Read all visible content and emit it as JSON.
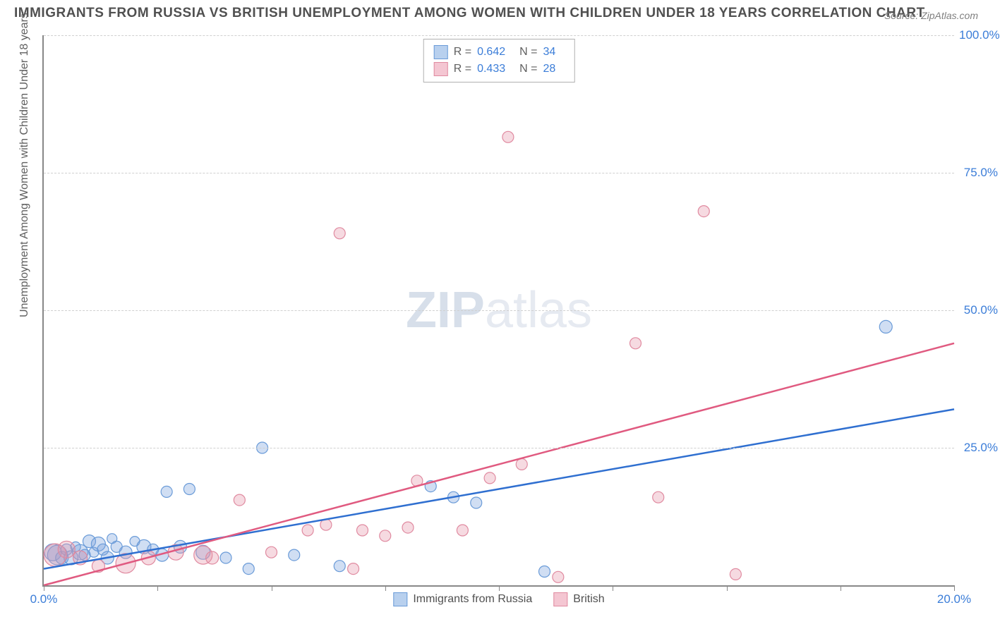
{
  "title": "IMMIGRANTS FROM RUSSIA VS BRITISH UNEMPLOYMENT AMONG WOMEN WITH CHILDREN UNDER 18 YEARS CORRELATION CHART",
  "source": "Source: ZipAtlas.com",
  "y_axis_label": "Unemployment Among Women with Children Under 18 years",
  "watermark": {
    "bold": "ZIP",
    "rest": "atlas"
  },
  "chart": {
    "type": "scatter",
    "xlim": [
      0,
      20
    ],
    "ylim": [
      0,
      100
    ],
    "x_unit": "%",
    "y_unit": "%",
    "x_ticks": [
      0,
      2.5,
      5,
      7.5,
      10,
      12.5,
      15,
      17.5,
      20
    ],
    "x_tick_labels_shown": {
      "0": "0.0%",
      "20": "20.0%"
    },
    "y_ticks": [
      25,
      50,
      75,
      100
    ],
    "y_tick_labels": [
      "25.0%",
      "50.0%",
      "75.0%",
      "100.0%"
    ],
    "grid_color": "#d0d0d0",
    "axis_color": "#888888",
    "tick_label_color": "#3b7dd8",
    "tick_label_fontsize": 17,
    "background_color": "#ffffff",
    "series": [
      {
        "name": "Immigrants from Russia",
        "color_fill": "rgba(120,160,220,0.35)",
        "color_stroke": "#6a9bd8",
        "swatch_fill": "#b8d0ee",
        "swatch_border": "#6a9bd8",
        "r_value": "0.642",
        "n_value": "34",
        "trend": {
          "x1": 0,
          "y1": 3.0,
          "x2": 20,
          "y2": 32.0,
          "color": "#2f6fd0",
          "width": 2.5
        },
        "points": [
          {
            "x": 0.2,
            "y": 6.0,
            "r": 12
          },
          {
            "x": 0.3,
            "y": 5.5,
            "r": 14
          },
          {
            "x": 0.4,
            "y": 5.0,
            "r": 9
          },
          {
            "x": 0.5,
            "y": 6.5,
            "r": 8
          },
          {
            "x": 0.6,
            "y": 5.0,
            "r": 10
          },
          {
            "x": 0.7,
            "y": 7.0,
            "r": 7
          },
          {
            "x": 0.8,
            "y": 6.0,
            "r": 11
          },
          {
            "x": 0.9,
            "y": 5.5,
            "r": 8
          },
          {
            "x": 1.0,
            "y": 8.0,
            "r": 9
          },
          {
            "x": 1.1,
            "y": 6.0,
            "r": 7
          },
          {
            "x": 1.2,
            "y": 7.5,
            "r": 10
          },
          {
            "x": 1.3,
            "y": 6.5,
            "r": 8
          },
          {
            "x": 1.4,
            "y": 5.0,
            "r": 9
          },
          {
            "x": 1.5,
            "y": 8.5,
            "r": 7
          },
          {
            "x": 1.6,
            "y": 7.0,
            "r": 8
          },
          {
            "x": 1.8,
            "y": 6.0,
            "r": 9
          },
          {
            "x": 2.0,
            "y": 8.0,
            "r": 7
          },
          {
            "x": 2.2,
            "y": 7.0,
            "r": 10
          },
          {
            "x": 2.4,
            "y": 6.5,
            "r": 8
          },
          {
            "x": 2.6,
            "y": 5.5,
            "r": 9
          },
          {
            "x": 2.7,
            "y": 17.0,
            "r": 8
          },
          {
            "x": 3.0,
            "y": 7.0,
            "r": 9
          },
          {
            "x": 3.2,
            "y": 17.5,
            "r": 8
          },
          {
            "x": 3.5,
            "y": 6.0,
            "r": 10
          },
          {
            "x": 4.0,
            "y": 5.0,
            "r": 8
          },
          {
            "x": 4.5,
            "y": 3.0,
            "r": 8
          },
          {
            "x": 4.8,
            "y": 25.0,
            "r": 8
          },
          {
            "x": 5.5,
            "y": 5.5,
            "r": 8
          },
          {
            "x": 6.5,
            "y": 3.5,
            "r": 8
          },
          {
            "x": 8.5,
            "y": 18.0,
            "r": 8
          },
          {
            "x": 9.0,
            "y": 16.0,
            "r": 8
          },
          {
            "x": 9.5,
            "y": 15.0,
            "r": 8
          },
          {
            "x": 11.0,
            "y": 2.5,
            "r": 8
          },
          {
            "x": 18.5,
            "y": 47.0,
            "r": 9
          }
        ]
      },
      {
        "name": "British",
        "color_fill": "rgba(230,150,170,0.35)",
        "color_stroke": "#e08aa0",
        "swatch_fill": "#f4c6d2",
        "swatch_border": "#e08aa0",
        "r_value": "0.433",
        "n_value": "28",
        "trend": {
          "x1": 0,
          "y1": 0.0,
          "x2": 20,
          "y2": 44.0,
          "color": "#e05a80",
          "width": 2.5
        },
        "points": [
          {
            "x": 0.25,
            "y": 5.5,
            "r": 16
          },
          {
            "x": 0.5,
            "y": 6.5,
            "r": 12
          },
          {
            "x": 0.8,
            "y": 5.0,
            "r": 10
          },
          {
            "x": 1.2,
            "y": 3.5,
            "r": 9
          },
          {
            "x": 1.8,
            "y": 4.0,
            "r": 14
          },
          {
            "x": 2.3,
            "y": 5.0,
            "r": 10
          },
          {
            "x": 2.9,
            "y": 6.0,
            "r": 11
          },
          {
            "x": 3.5,
            "y": 5.5,
            "r": 13
          },
          {
            "x": 3.7,
            "y": 5.0,
            "r": 9
          },
          {
            "x": 4.3,
            "y": 15.5,
            "r": 8
          },
          {
            "x": 5.0,
            "y": 6.0,
            "r": 8
          },
          {
            "x": 5.8,
            "y": 10.0,
            "r": 8
          },
          {
            "x": 6.2,
            "y": 11.0,
            "r": 8
          },
          {
            "x": 6.8,
            "y": 3.0,
            "r": 8
          },
          {
            "x": 7.0,
            "y": 10.0,
            "r": 8
          },
          {
            "x": 6.5,
            "y": 64.0,
            "r": 8
          },
          {
            "x": 7.5,
            "y": 9.0,
            "r": 8
          },
          {
            "x": 8.0,
            "y": 10.5,
            "r": 8
          },
          {
            "x": 8.2,
            "y": 19.0,
            "r": 8
          },
          {
            "x": 9.2,
            "y": 10.0,
            "r": 8
          },
          {
            "x": 9.8,
            "y": 19.5,
            "r": 8
          },
          {
            "x": 10.2,
            "y": 81.5,
            "r": 8
          },
          {
            "x": 10.5,
            "y": 22.0,
            "r": 8
          },
          {
            "x": 11.3,
            "y": 1.5,
            "r": 8
          },
          {
            "x": 13.0,
            "y": 44.0,
            "r": 8
          },
          {
            "x": 13.5,
            "y": 16.0,
            "r": 8
          },
          {
            "x": 14.5,
            "y": 68.0,
            "r": 8
          },
          {
            "x": 15.2,
            "y": 2.0,
            "r": 8
          }
        ]
      }
    ]
  },
  "legend_bottom": [
    {
      "label": "Immigrants from Russia",
      "series_index": 0
    },
    {
      "label": "British",
      "series_index": 1
    }
  ]
}
